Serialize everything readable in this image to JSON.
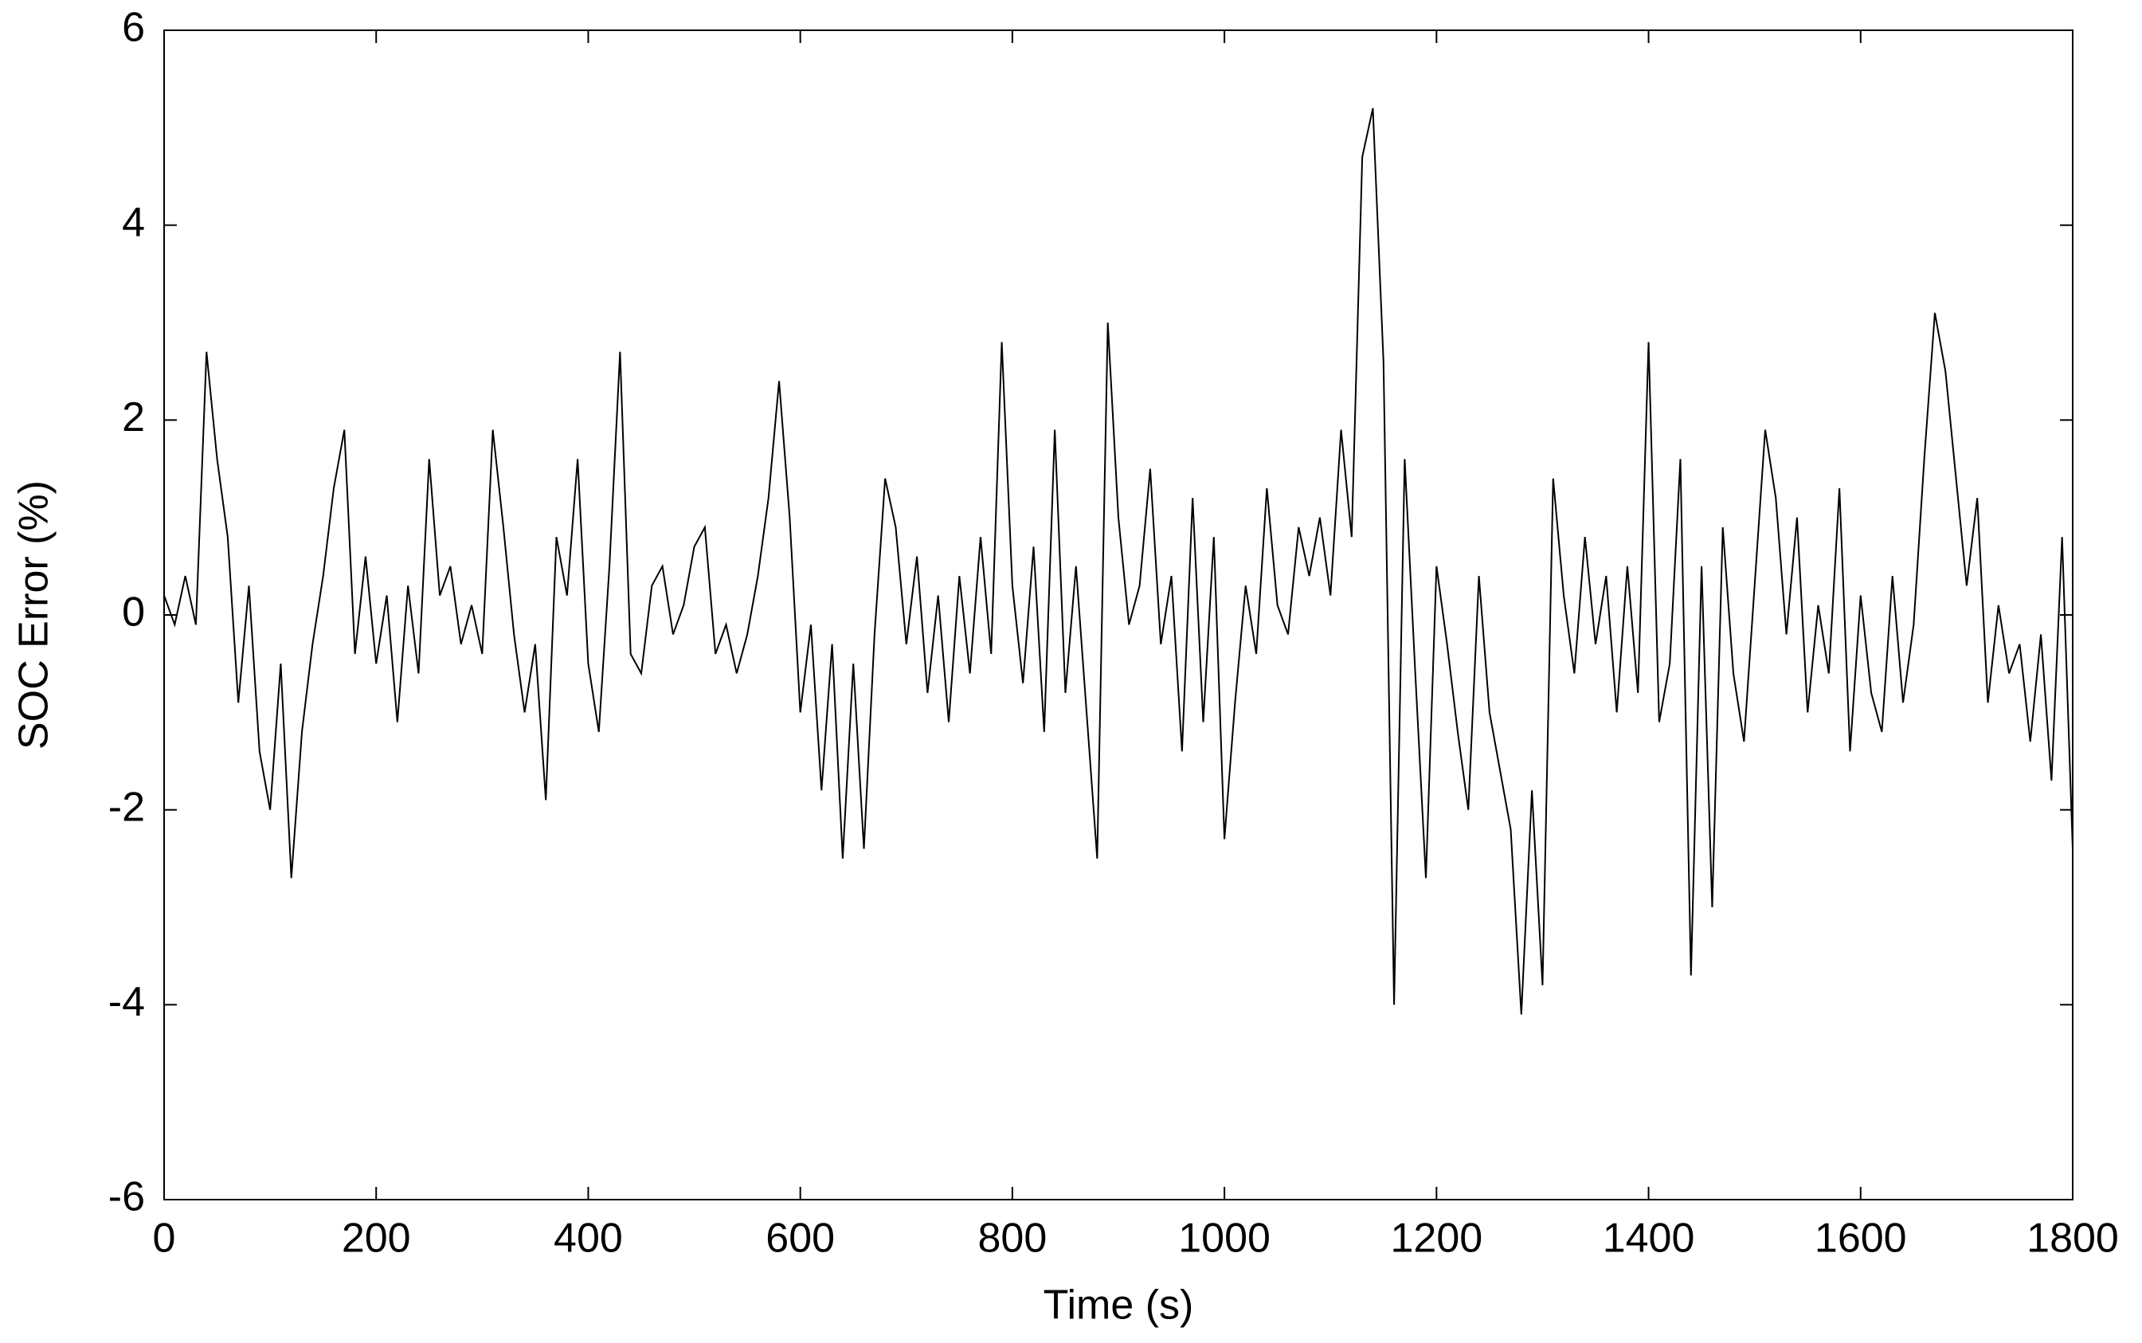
{
  "chart_data": {
    "type": "line",
    "x_label": "Time (s)",
    "y_label": "SOC Error (%)",
    "xlim": [
      0,
      1800
    ],
    "xticks": [
      0,
      200,
      400,
      600,
      800,
      1000,
      1200,
      1400,
      1600,
      1800
    ],
    "ylim": [
      -6,
      6
    ],
    "yticks": [
      -6,
      -4,
      -2,
      0,
      2,
      4,
      6
    ],
    "x": [
      0,
      10,
      20,
      30,
      40,
      50,
      60,
      70,
      80,
      90,
      100,
      110,
      120,
      130,
      140,
      150,
      160,
      170,
      180,
      190,
      200,
      210,
      220,
      230,
      240,
      250,
      260,
      270,
      280,
      290,
      300,
      310,
      320,
      330,
      340,
      350,
      360,
      370,
      380,
      390,
      400,
      410,
      420,
      430,
      440,
      450,
      460,
      470,
      480,
      490,
      500,
      510,
      520,
      530,
      540,
      550,
      560,
      570,
      580,
      590,
      600,
      610,
      620,
      630,
      640,
      650,
      660,
      670,
      680,
      690,
      700,
      710,
      720,
      730,
      740,
      750,
      760,
      770,
      780,
      790,
      800,
      810,
      820,
      830,
      840,
      850,
      860,
      870,
      880,
      890,
      900,
      910,
      920,
      930,
      940,
      950,
      960,
      970,
      980,
      990,
      1000,
      1010,
      1020,
      1030,
      1040,
      1050,
      1060,
      1070,
      1080,
      1090,
      1100,
      1110,
      1120,
      1130,
      1140,
      1150,
      1160,
      1170,
      1180,
      1190,
      1200,
      1210,
      1220,
      1230,
      1240,
      1250,
      1260,
      1270,
      1280,
      1290,
      1300,
      1310,
      1320,
      1330,
      1340,
      1350,
      1360,
      1370,
      1380,
      1390,
      1400,
      1410,
      1420,
      1430,
      1440,
      1450,
      1460,
      1470,
      1480,
      1490,
      1500,
      1510,
      1520,
      1530,
      1540,
      1550,
      1560,
      1570,
      1580,
      1590,
      1600,
      1610,
      1620,
      1630,
      1640,
      1650,
      1660,
      1670,
      1680,
      1690,
      1700,
      1710,
      1720,
      1730,
      1740,
      1750,
      1760,
      1770,
      1780,
      1790,
      1800
    ],
    "series": [
      {
        "color": "#000000",
        "values": [
          0.2,
          -0.1,
          0.4,
          -0.1,
          2.7,
          1.6,
          0.8,
          -0.9,
          0.3,
          -1.4,
          -2.0,
          -0.5,
          -2.7,
          -1.2,
          -0.3,
          0.4,
          1.3,
          1.9,
          -0.4,
          0.6,
          -0.5,
          0.2,
          -1.1,
          0.3,
          -0.6,
          1.6,
          0.2,
          0.5,
          -0.3,
          0.1,
          -0.4,
          1.9,
          0.9,
          -0.2,
          -1.0,
          -0.3,
          -1.9,
          0.8,
          0.2,
          1.6,
          -0.5,
          -1.2,
          0.5,
          2.7,
          -0.4,
          -0.6,
          0.3,
          0.5,
          -0.2,
          0.1,
          0.7,
          0.9,
          -0.4,
          -0.1,
          -0.6,
          -0.2,
          0.4,
          1.2,
          2.4,
          1.0,
          -1.0,
          -0.1,
          -1.8,
          -0.3,
          -2.5,
          -0.5,
          -2.4,
          -0.2,
          1.4,
          0.9,
          -0.3,
          0.6,
          -0.8,
          0.2,
          -1.1,
          0.4,
          -0.6,
          0.8,
          -0.4,
          2.8,
          0.3,
          -0.7,
          0.7,
          -1.2,
          1.9,
          -0.8,
          0.5,
          -1.0,
          -2.5,
          3.0,
          1.0,
          -0.1,
          0.3,
          1.5,
          -0.3,
          0.4,
          -1.4,
          1.2,
          -1.1,
          0.8,
          -2.3,
          -0.9,
          0.3,
          -0.4,
          1.3,
          0.1,
          -0.2,
          0.9,
          0.4,
          1.0,
          0.2,
          1.9,
          0.8,
          4.7,
          5.2,
          2.6,
          -4.0,
          1.6,
          -0.6,
          -2.7,
          0.5,
          -0.3,
          -1.2,
          -2.0,
          0.4,
          -1.0,
          -1.6,
          -2.2,
          -4.1,
          -1.8,
          -3.8,
          1.4,
          0.2,
          -0.6,
          0.8,
          -0.3,
          0.4,
          -1.0,
          0.5,
          -0.8,
          2.8,
          -1.1,
          -0.5,
          1.6,
          -3.7,
          0.5,
          -3.0,
          0.9,
          -0.6,
          -1.3,
          0.3,
          1.9,
          1.2,
          -0.2,
          1.0,
          -1.0,
          0.1,
          -0.6,
          1.3,
          -1.4,
          0.2,
          -0.8,
          -1.2,
          0.4,
          -0.9,
          -0.1,
          1.6,
          3.1,
          2.5,
          1.4,
          0.3,
          1.2,
          -0.9,
          0.1,
          -0.6,
          -0.3,
          -1.3,
          -0.2,
          -1.7,
          0.8,
          -2.4
        ]
      }
    ]
  }
}
